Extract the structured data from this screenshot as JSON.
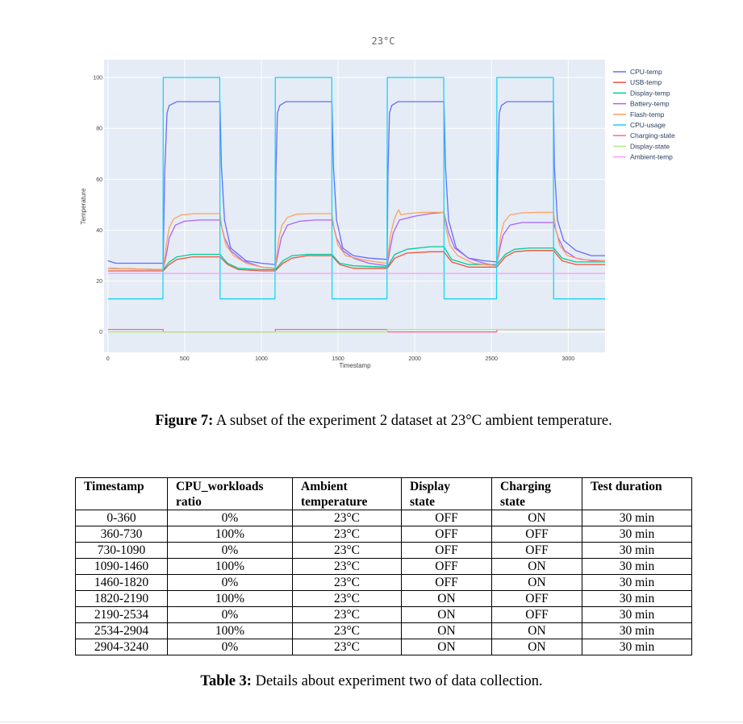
{
  "figure": {
    "chart_data": {
      "type": "line",
      "title": "23°C",
      "xlabel": "Timestamp",
      "ylabel": "Temperature",
      "xlim": [
        -25,
        3240
      ],
      "ylim": [
        -8,
        107
      ],
      "x_ticks": [
        "0",
        "500",
        "1000",
        "1500",
        "2000",
        "2500",
        "3000"
      ],
      "y_ticks": [
        "0",
        "20",
        "40",
        "60",
        "80",
        "100"
      ],
      "grid": true,
      "legend_position": "right",
      "background": "#e5ecf6",
      "series": [
        {
          "name": "CPU-temp",
          "color": "#636efa",
          "x": [
            0,
            50,
            150,
            300,
            360,
            370,
            385,
            400,
            450,
            550,
            650,
            730,
            740,
            760,
            800,
            900,
            1000,
            1090,
            1095,
            1105,
            1120,
            1160,
            1250,
            1350,
            1460,
            1470,
            1490,
            1530,
            1600,
            1700,
            1820,
            1825,
            1835,
            1850,
            1890,
            2000,
            2100,
            2190,
            2200,
            2220,
            2270,
            2350,
            2450,
            2534,
            2540,
            2550,
            2565,
            2600,
            2700,
            2800,
            2904,
            2910,
            2930,
            2970,
            3050,
            3150,
            3240
          ],
          "y": [
            28,
            27,
            27,
            27,
            27,
            62,
            86,
            89,
            90.5,
            90.5,
            90.5,
            90.5,
            65,
            44,
            33,
            28,
            27,
            26.5,
            62,
            86,
            89,
            90.5,
            90.5,
            90.5,
            90.5,
            65,
            44,
            33,
            30,
            29,
            28.5,
            62,
            86,
            89,
            90.5,
            90.5,
            90.5,
            90.5,
            65,
            44,
            33,
            29,
            28,
            27.5,
            62,
            86,
            89,
            90.5,
            90.5,
            90.5,
            90.5,
            65,
            44,
            36,
            32,
            30,
            30
          ]
        },
        {
          "name": "USB-temp",
          "color": "#ef553b",
          "x": [
            0,
            360,
            400,
            450,
            550,
            730,
            780,
            850,
            1000,
            1090,
            1140,
            1200,
            1300,
            1460,
            1510,
            1600,
            1820,
            1870,
            1950,
            2100,
            2190,
            2240,
            2350,
            2534,
            2590,
            2650,
            2750,
            2904,
            2960,
            3050,
            3240
          ],
          "y": [
            24,
            24,
            26.5,
            28.5,
            29.5,
            29.5,
            26.5,
            24.5,
            24,
            24,
            27,
            29,
            30,
            30,
            26.5,
            25,
            25,
            29,
            31,
            31.5,
            31.5,
            27.5,
            25.5,
            25.5,
            29.5,
            31.5,
            32,
            32,
            28,
            26.5,
            26.5
          ]
        },
        {
          "name": "Display-temp",
          "color": "#00cc96",
          "x": [
            0,
            360,
            400,
            450,
            550,
            730,
            780,
            850,
            1000,
            1090,
            1140,
            1200,
            1300,
            1460,
            1510,
            1600,
            1820,
            1870,
            1950,
            2100,
            2190,
            2240,
            2350,
            2534,
            2590,
            2650,
            2750,
            2904,
            2960,
            3050,
            3240
          ],
          "y": [
            25,
            24.5,
            27.5,
            29.5,
            30.5,
            30.5,
            27,
            25,
            24.5,
            24.5,
            28,
            30,
            30.5,
            30.5,
            27,
            26,
            25.5,
            30.5,
            32.5,
            33.5,
            33.5,
            28.5,
            26.5,
            26.5,
            30.5,
            32.5,
            33,
            33,
            29,
            27.5,
            27.5
          ]
        },
        {
          "name": "Battery-temp",
          "color": "#ab63fa",
          "x": [
            0,
            360,
            380,
            400,
            440,
            500,
            600,
            730,
            760,
            800,
            880,
            1000,
            1090,
            1110,
            1130,
            1170,
            1250,
            1350,
            1460,
            1490,
            1530,
            1600,
            1700,
            1820,
            1840,
            1860,
            1900,
            2000,
            2100,
            2190,
            2220,
            2260,
            2350,
            2450,
            2534,
            2555,
            2575,
            2620,
            2700,
            2800,
            2904,
            2935,
            2975,
            3050,
            3150,
            3240
          ],
          "y": [
            25,
            24.5,
            30,
            37,
            42,
            43.5,
            44,
            44,
            37,
            32,
            28,
            25.5,
            25,
            31,
            37,
            42,
            43.5,
            44,
            44,
            37,
            32,
            29,
            27,
            26,
            33,
            39,
            44,
            45.5,
            46.5,
            47,
            39,
            33,
            29,
            27,
            26,
            33,
            38,
            42,
            43,
            43,
            43,
            37,
            32,
            29,
            28,
            28
          ]
        },
        {
          "name": "Flash-temp",
          "color": "#ffa15a",
          "x": [
            0,
            360,
            370,
            385,
            400,
            430,
            480,
            560,
            730,
            745,
            770,
            820,
            900,
            1000,
            1090,
            1100,
            1115,
            1135,
            1170,
            1230,
            1320,
            1460,
            1475,
            1500,
            1550,
            1650,
            1750,
            1820,
            1830,
            1845,
            1865,
            1885,
            1895,
            1910,
            1950,
            2050,
            2190,
            2205,
            2230,
            2280,
            2380,
            2534,
            2545,
            2560,
            2580,
            2620,
            2700,
            2800,
            2904,
            2920,
            2945,
            2995,
            3080,
            3240
          ],
          "y": [
            25,
            24.5,
            29,
            36,
            41,
            44.5,
            46,
            46.5,
            46.5,
            40,
            34,
            30,
            27,
            25.5,
            25,
            30,
            37,
            42,
            45,
            46.3,
            46.5,
            46.5,
            40,
            34,
            30,
            28.5,
            27.5,
            27,
            32,
            39,
            44,
            47,
            48,
            46,
            46.5,
            47,
            47,
            40,
            34,
            30,
            27,
            26,
            31,
            38,
            43,
            46,
            46.8,
            47,
            47,
            40,
            34,
            30,
            28.5,
            28
          ]
        },
        {
          "name": "CPU-usage",
          "color": "#19d3f3",
          "x": [
            0,
            359,
            361,
            729,
            731,
            1089,
            1091,
            1459,
            1461,
            1819,
            1821,
            2189,
            2191,
            2533,
            2535,
            2903,
            2905,
            3240
          ],
          "y": [
            13,
            13,
            100,
            100,
            13,
            13,
            100,
            100,
            13,
            13,
            100,
            100,
            13,
            13,
            100,
            100,
            13,
            13
          ]
        },
        {
          "name": "Charging-state",
          "color": "#ff6692",
          "x": [
            0,
            360,
            361,
            1090,
            1091,
            1820,
            1821,
            2534,
            2535,
            3240
          ],
          "y": [
            1,
            1,
            0,
            0,
            1,
            1,
            0,
            0,
            1,
            1
          ]
        },
        {
          "name": "Display-state",
          "color": "#b6e880",
          "x": [
            0,
            1820,
            1821,
            3240
          ],
          "y": [
            0,
            0,
            1,
            1
          ]
        },
        {
          "name": "Ambient-temp",
          "color": "#ff97ff",
          "x": [
            0,
            3240
          ],
          "y": [
            23,
            23
          ]
        }
      ]
    },
    "caption_label": "Figure 7:",
    "caption_text": " A subset of the experiment 2 dataset at 23°C ambient temperature."
  },
  "table": {
    "headers": [
      [
        "Timestamp",
        ""
      ],
      [
        "CPU_workloads",
        "ratio"
      ],
      [
        "Ambient",
        "temperature"
      ],
      [
        "Display",
        "state"
      ],
      [
        "Charging",
        "state"
      ],
      [
        "Test duration",
        ""
      ]
    ],
    "rows": [
      [
        "0-360",
        "0%",
        "23°C",
        "OFF",
        "ON",
        "30 min"
      ],
      [
        "360-730",
        "100%",
        "23°C",
        "OFF",
        "OFF",
        "30 min"
      ],
      [
        "730-1090",
        "0%",
        "23°C",
        "OFF",
        "OFF",
        "30 min"
      ],
      [
        "1090-1460",
        "100%",
        "23°C",
        "OFF",
        "ON",
        "30 min"
      ],
      [
        "1460-1820",
        "0%",
        "23°C",
        "OFF",
        "ON",
        "30 min"
      ],
      [
        "1820-2190",
        "100%",
        "23°C",
        "ON",
        "OFF",
        "30 min"
      ],
      [
        "2190-2534",
        "0%",
        "23°C",
        "ON",
        "OFF",
        "30 min"
      ],
      [
        "2534-2904",
        "100%",
        "23°C",
        "ON",
        "ON",
        "30 min"
      ],
      [
        "2904-3240",
        "0%",
        "23°C",
        "ON",
        "ON",
        "30 min"
      ]
    ],
    "caption_label": "Table 3:",
    "caption_text": " Details about experiment two of data collection."
  }
}
